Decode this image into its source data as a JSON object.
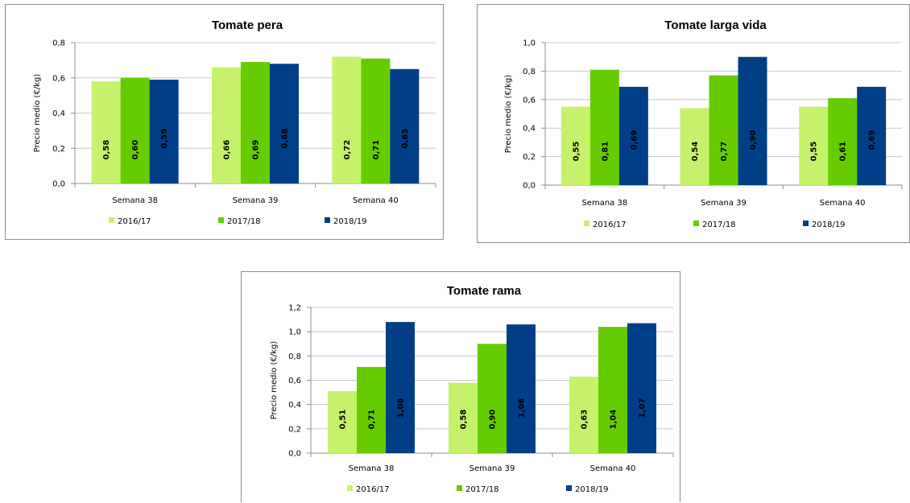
{
  "chart_data": [
    {
      "type": "bar",
      "title": "Tomate pera",
      "ylabel": "Precio medio (€/kg)",
      "xlabel": "",
      "categories": [
        "Semana 38",
        "Semana 39",
        "Semana 40"
      ],
      "ylim": [
        0,
        0.8
      ],
      "yticks": [
        "0,0",
        "0,2",
        "0,4",
        "0,6",
        "0,8"
      ],
      "grid": true,
      "legend": "bottom",
      "series": [
        {
          "name": "2016/17",
          "color": "#c6f26b",
          "values": [
            0.58,
            0.66,
            0.72
          ],
          "labels": [
            "0,58",
            "0,66",
            "0,72"
          ]
        },
        {
          "name": "2017/18",
          "color": "#66cc00",
          "values": [
            0.6,
            0.69,
            0.71
          ],
          "labels": [
            "0,60",
            "0,69",
            "0,71"
          ]
        },
        {
          "name": "2018/19",
          "color": "#003f87",
          "values": [
            0.59,
            0.68,
            0.65
          ],
          "labels": [
            "0,59",
            "0,68",
            "0,65"
          ]
        }
      ]
    },
    {
      "type": "bar",
      "title": "Tomate larga vida",
      "ylabel": "Precio medio (€/kg)",
      "xlabel": "",
      "categories": [
        "Semana 38",
        "Semana 39",
        "Semana 40"
      ],
      "ylim": [
        0,
        1.0
      ],
      "yticks": [
        "0,0",
        "0,2",
        "0,4",
        "0,6",
        "0,8",
        "1,0"
      ],
      "grid": true,
      "legend": "bottom",
      "series": [
        {
          "name": "2016/17",
          "color": "#c6f26b",
          "values": [
            0.55,
            0.54,
            0.55
          ],
          "labels": [
            "0,55",
            "0,54",
            "0,55"
          ]
        },
        {
          "name": "2017/18",
          "color": "#66cc00",
          "values": [
            0.81,
            0.77,
            0.61
          ],
          "labels": [
            "0,81",
            "0,77",
            "0,61"
          ]
        },
        {
          "name": "2018/19",
          "color": "#003f87",
          "values": [
            0.69,
            0.9,
            0.69
          ],
          "labels": [
            "0,69",
            "0,90",
            "0,69"
          ]
        }
      ]
    },
    {
      "type": "bar",
      "title": "Tomate rama",
      "ylabel": "Precio medio (€/kg)",
      "xlabel": "",
      "categories": [
        "Semana 38",
        "Semana 39",
        "Semana 40"
      ],
      "ylim": [
        0,
        1.2
      ],
      "yticks": [
        "0,0",
        "0,2",
        "0,4",
        "0,6",
        "0,8",
        "1,0",
        "1,2"
      ],
      "grid": true,
      "legend": "bottom",
      "series": [
        {
          "name": "2016/17",
          "color": "#c6f26b",
          "values": [
            0.51,
            0.58,
            0.63
          ],
          "labels": [
            "0,51",
            "0,58",
            "0,63"
          ]
        },
        {
          "name": "2017/18",
          "color": "#66cc00",
          "values": [
            0.71,
            0.9,
            1.04
          ],
          "labels": [
            "0,71",
            "0,90",
            "1,04"
          ]
        },
        {
          "name": "2018/19",
          "color": "#003f87",
          "values": [
            1.08,
            1.06,
            1.07
          ],
          "labels": [
            "1,08",
            "1,06",
            "1,07"
          ]
        }
      ]
    }
  ]
}
